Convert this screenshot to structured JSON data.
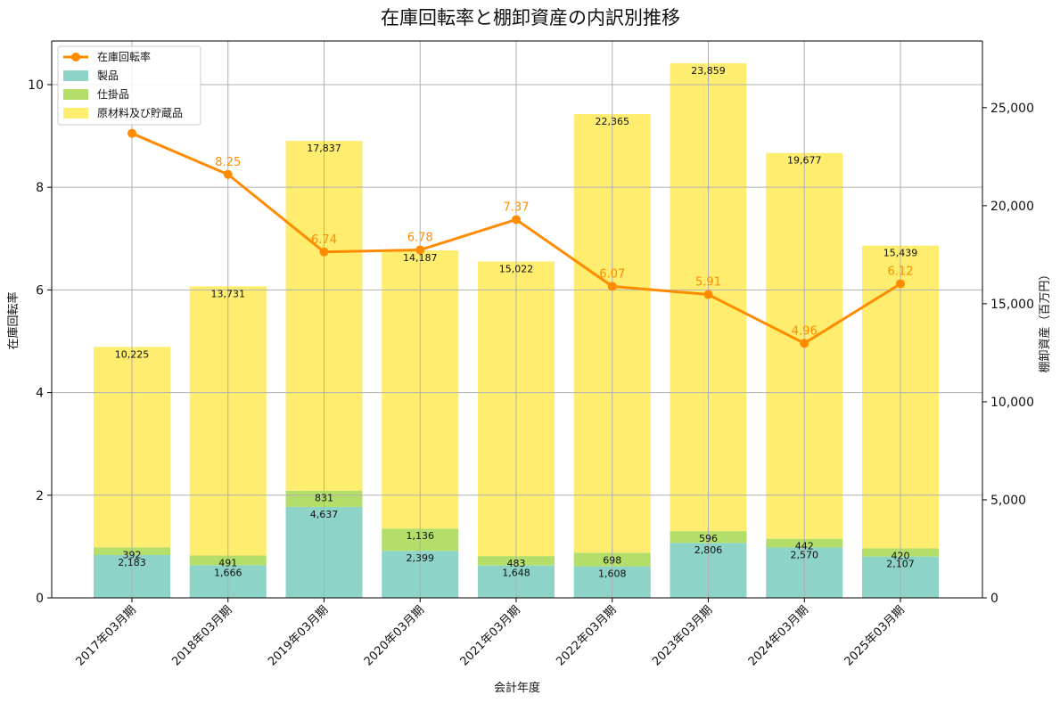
{
  "chart_data": {
    "type": "bar",
    "title": "在庫回転率と棚卸資産の内訳別推移",
    "xlabel": "会計年度",
    "ylabel_left": "在庫回転率",
    "ylabel_right": "棚卸資産（百万円）",
    "ylim_left": [
      0,
      10.85
    ],
    "ylim_right": [
      0,
      28400
    ],
    "yticks_left": [
      0,
      2,
      4,
      6,
      8,
      10
    ],
    "yticks_right": [
      0,
      5000,
      10000,
      15000,
      20000,
      25000
    ],
    "yticks_right_labels": [
      "0",
      "5,000",
      "10,000",
      "15,000",
      "20,000",
      "25,000"
    ],
    "grid": true,
    "legend_position": "top-left",
    "categories": [
      "2017年03月期",
      "2018年03月期",
      "2019年03月期",
      "2020年03月期",
      "2021年03月期",
      "2022年03月期",
      "2023年03月期",
      "2024年03月期",
      "2025年03月期"
    ],
    "stacked_series": [
      {
        "name": "製品",
        "color": "#8DD3C7",
        "values": [
          2183,
          1666,
          4637,
          2399,
          1648,
          1608,
          2806,
          2570,
          2107
        ],
        "labels": [
          "2,183",
          "1,666",
          "4,637",
          "2,399",
          "1,648",
          "1,608",
          "2,806",
          "2,570",
          "2,107"
        ]
      },
      {
        "name": "仕掛品",
        "color": "#B3DE69",
        "values": [
          392,
          491,
          831,
          1136,
          483,
          698,
          596,
          442,
          420
        ],
        "labels": [
          "392",
          "491",
          "831",
          "1,136",
          "483",
          "698",
          "596",
          "442",
          "420"
        ]
      },
      {
        "name": "原材料及び貯蔵品",
        "color": "#FFED6F",
        "values": [
          10225,
          13731,
          17837,
          14187,
          15022,
          22365,
          23859,
          19677,
          15439
        ],
        "labels": [
          "10,225",
          "13,731",
          "17,837",
          "14,187",
          "15,022",
          "22,365",
          "23,859",
          "19,677",
          "15,439"
        ]
      }
    ],
    "line_series": {
      "name": "在庫回転率",
      "color": "#FF8C00",
      "values": [
        9.05,
        8.25,
        6.74,
        6.78,
        7.37,
        6.07,
        5.91,
        4.96,
        6.12
      ],
      "labels": [
        "",
        "8.25",
        "6.74",
        "6.78",
        "7.37",
        "6.07",
        "5.91",
        "4.96",
        "6.12"
      ]
    }
  }
}
